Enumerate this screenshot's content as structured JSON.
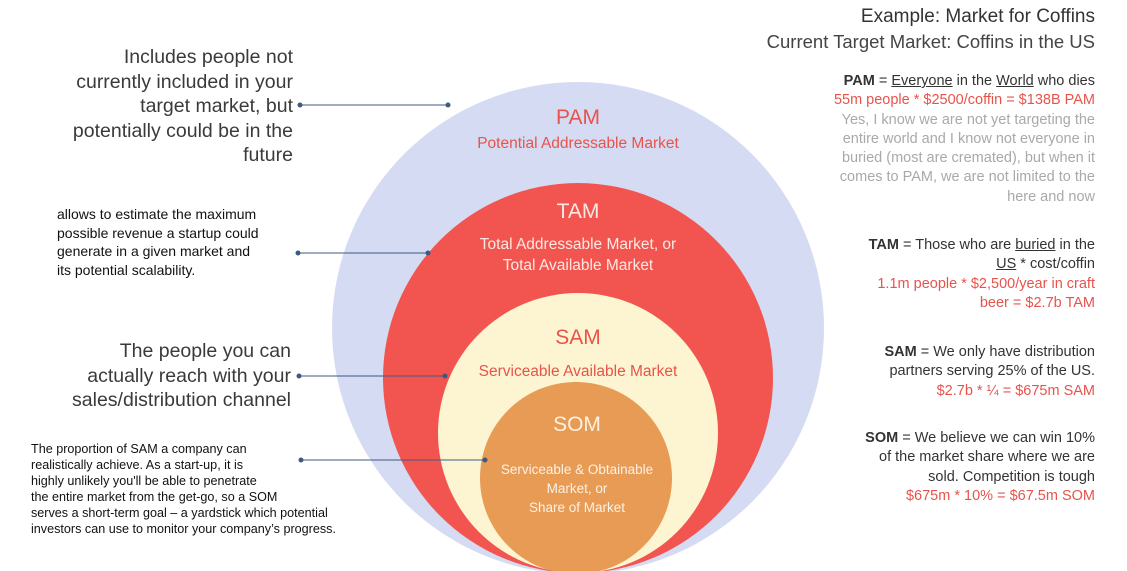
{
  "colors": {
    "pam": "#d5dbf2",
    "tam": "#f2554f",
    "sam": "#fdf5d2",
    "som": "#e79b55",
    "accent_red": "#e8534b",
    "muted_grey": "#a9a9a9",
    "connector": "#3d5a80"
  },
  "circles": {
    "pam": {
      "title": "PAM",
      "subtitle": "Potential Addressable Market"
    },
    "tam": {
      "title": "TAM",
      "subtitle_1": "Total Addressable Market, or",
      "subtitle_2": "Total Available Market"
    },
    "sam": {
      "title": "SAM",
      "subtitle": "Serviceable Available Market"
    },
    "som": {
      "title": "SOM",
      "subtitle_1": "Serviceable & Obtainable",
      "subtitle_2": "Market, or",
      "subtitle_3": "Share of Market"
    }
  },
  "left_notes": {
    "pam": [
      "Includes people not",
      "currently included in your",
      "target market, but",
      "potentially could be in the",
      "future"
    ],
    "tam": [
      "allows to estimate the maximum",
      "possible revenue a startup could",
      "generate in a given market and",
      "its potential scalability."
    ],
    "sam": [
      "The people you can",
      "actually reach with your",
      "sales/distribution channel"
    ],
    "som": [
      "The proportion of SAM a company can",
      "realistically achieve. As a start-up, it is",
      "highly unlikely you'll be able to penetrate",
      "the entire market from the get-go, so a SOM",
      "serves a short-term goal – a yardstick which potential",
      "investors can use to monitor your company’s progress."
    ]
  },
  "example": {
    "title": "Example: Market for Coffins",
    "subtitle": "Current Target Market: Coffins in the US",
    "pam": {
      "label": "PAM",
      "eq": " = ",
      "w1": "Everyone",
      "mid": " in the ",
      "w2": "World",
      "end": " who dies",
      "calc": "55m people * $2500/coffin = $138B PAM",
      "note": [
        "Yes, I know we are not yet targeting the",
        "entire world and I know not everyone in",
        "buried (most are cremated), but when it",
        "comes to PAM, we are not limited to the",
        "here and now"
      ]
    },
    "tam": {
      "label": "TAM",
      "pre": " = Those who are ",
      "w1": "buried",
      "post": " in the",
      "w2": "US",
      "post2": " * cost/coffin",
      "calc_1": "1.1m people * $2,500/year in craft",
      "calc_2": "beer = $2.7b TAM"
    },
    "sam": {
      "label": "SAM",
      "line_1": " = We only have distribution",
      "line_2": "partners serving 25% of the US.",
      "calc": "$2.7b * ¼ = $675m SAM"
    },
    "som": {
      "label": "SOM",
      "line_1": " = We believe we can win 10%",
      "line_2": "of the market share where we are",
      "line_3": "sold.  Competition is tough",
      "calc": "$675m * 10% = $67.5m SOM"
    }
  }
}
